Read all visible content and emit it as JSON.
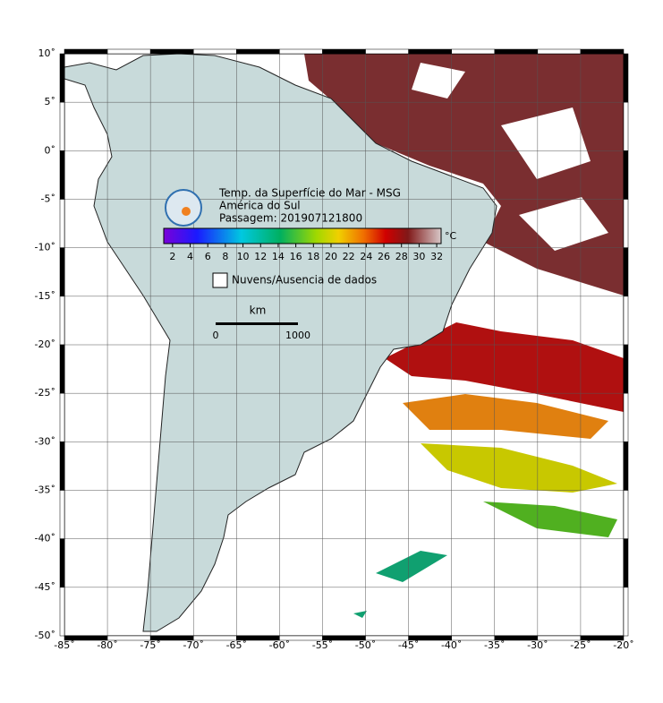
{
  "map": {
    "title": [
      "Temp. da Superfície do Mar - MSG",
      "América do Sul",
      "Passagem: 201907121800"
    ],
    "lonlim": [
      -85,
      -20
    ],
    "latlim": [
      -50,
      10
    ],
    "lon_ticks": [
      {
        "value": -85,
        "label": "-85˚"
      },
      {
        "value": -80,
        "label": "-80˚"
      },
      {
        "value": -75,
        "label": "-75˚"
      },
      {
        "value": -70,
        "label": "-70˚"
      },
      {
        "value": -65,
        "label": "-65˚"
      },
      {
        "value": -60,
        "label": "-60˚"
      },
      {
        "value": -55,
        "label": "-55˚"
      },
      {
        "value": -50,
        "label": "-50˚"
      },
      {
        "value": -45,
        "label": "-45˚"
      },
      {
        "value": -40,
        "label": "-40˚"
      },
      {
        "value": -35,
        "label": "-35˚"
      },
      {
        "value": -30,
        "label": "-30˚"
      },
      {
        "value": -25,
        "label": "-25˚"
      },
      {
        "value": -20,
        "label": "-20˚"
      }
    ],
    "lat_ticks": [
      {
        "value": 10,
        "label": "10˚"
      },
      {
        "value": 5,
        "label": "5˚"
      },
      {
        "value": 0,
        "label": "0˚"
      },
      {
        "value": -5,
        "label": "-5˚"
      },
      {
        "value": -10,
        "label": "-10˚"
      },
      {
        "value": -15,
        "label": "-15˚"
      },
      {
        "value": -20,
        "label": "-20˚"
      },
      {
        "value": -25,
        "label": "-25˚"
      },
      {
        "value": -30,
        "label": "-30˚"
      },
      {
        "value": -35,
        "label": "-35˚"
      },
      {
        "value": -40,
        "label": "-40˚"
      },
      {
        "value": -45,
        "label": "-45˚"
      },
      {
        "value": -50,
        "label": "-50˚"
      }
    ],
    "colorbar": {
      "unit": "°C",
      "range": [
        1,
        32.5
      ],
      "ticks": [
        2,
        4,
        6,
        8,
        10,
        12,
        14,
        16,
        18,
        20,
        22,
        24,
        26,
        28,
        30,
        32
      ]
    },
    "legend": "Nuvens/Ausencia de dados",
    "scale_bar": {
      "unit": "km",
      "ticks": [
        0,
        1000
      ]
    }
  }
}
